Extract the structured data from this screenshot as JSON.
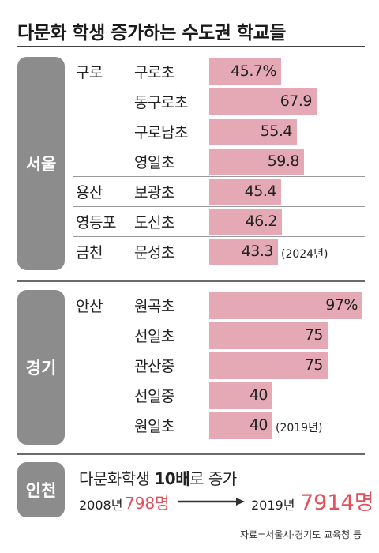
{
  "title": "다문화 학생 증가하는 수도권 학교들",
  "regions": {
    "seoul": "서울",
    "gyeonggi": "경기",
    "incheon": "인천"
  },
  "chart_data": [
    {
      "type": "bar",
      "region": "서울",
      "categories": [
        "구로초",
        "동구로초",
        "구로남초",
        "영일초",
        "보광초",
        "도신초",
        "문성초"
      ],
      "districts": [
        "구로",
        "",
        "",
        "",
        "용산",
        "영등포",
        "금천"
      ],
      "values": [
        45.7,
        67.9,
        55.4,
        59.8,
        45.4,
        46.2,
        43.3
      ],
      "value_labels": [
        "45.7%",
        "67.9",
        "55.4",
        "59.8",
        "45.4",
        "46.2",
        "43.3"
      ],
      "note": "(2024년)",
      "xlim": [
        0,
        100
      ]
    },
    {
      "type": "bar",
      "region": "경기",
      "categories": [
        "원곡초",
        "선일초",
        "관산중",
        "선일중",
        "원일초"
      ],
      "districts": [
        "안산",
        "",
        "",
        "",
        ""
      ],
      "values": [
        97,
        75,
        75,
        40,
        40
      ],
      "value_labels": [
        "97%",
        "75",
        "75",
        "40",
        "40"
      ],
      "note": "(2019년)",
      "xlim": [
        0,
        100
      ]
    }
  ],
  "incheon": {
    "headline_pre": "다문화학생 ",
    "headline_bold": "10배",
    "headline_post": "로 증가",
    "from_year": "2008년",
    "from_value": "798명",
    "to_year": "2019년",
    "to_value": "7914명"
  },
  "source": "자료=서울시·경기도 교육청 등",
  "colors": {
    "bar": "#e5a9b5",
    "pill": "#8c8c8c",
    "highlight": "#e0505a"
  }
}
